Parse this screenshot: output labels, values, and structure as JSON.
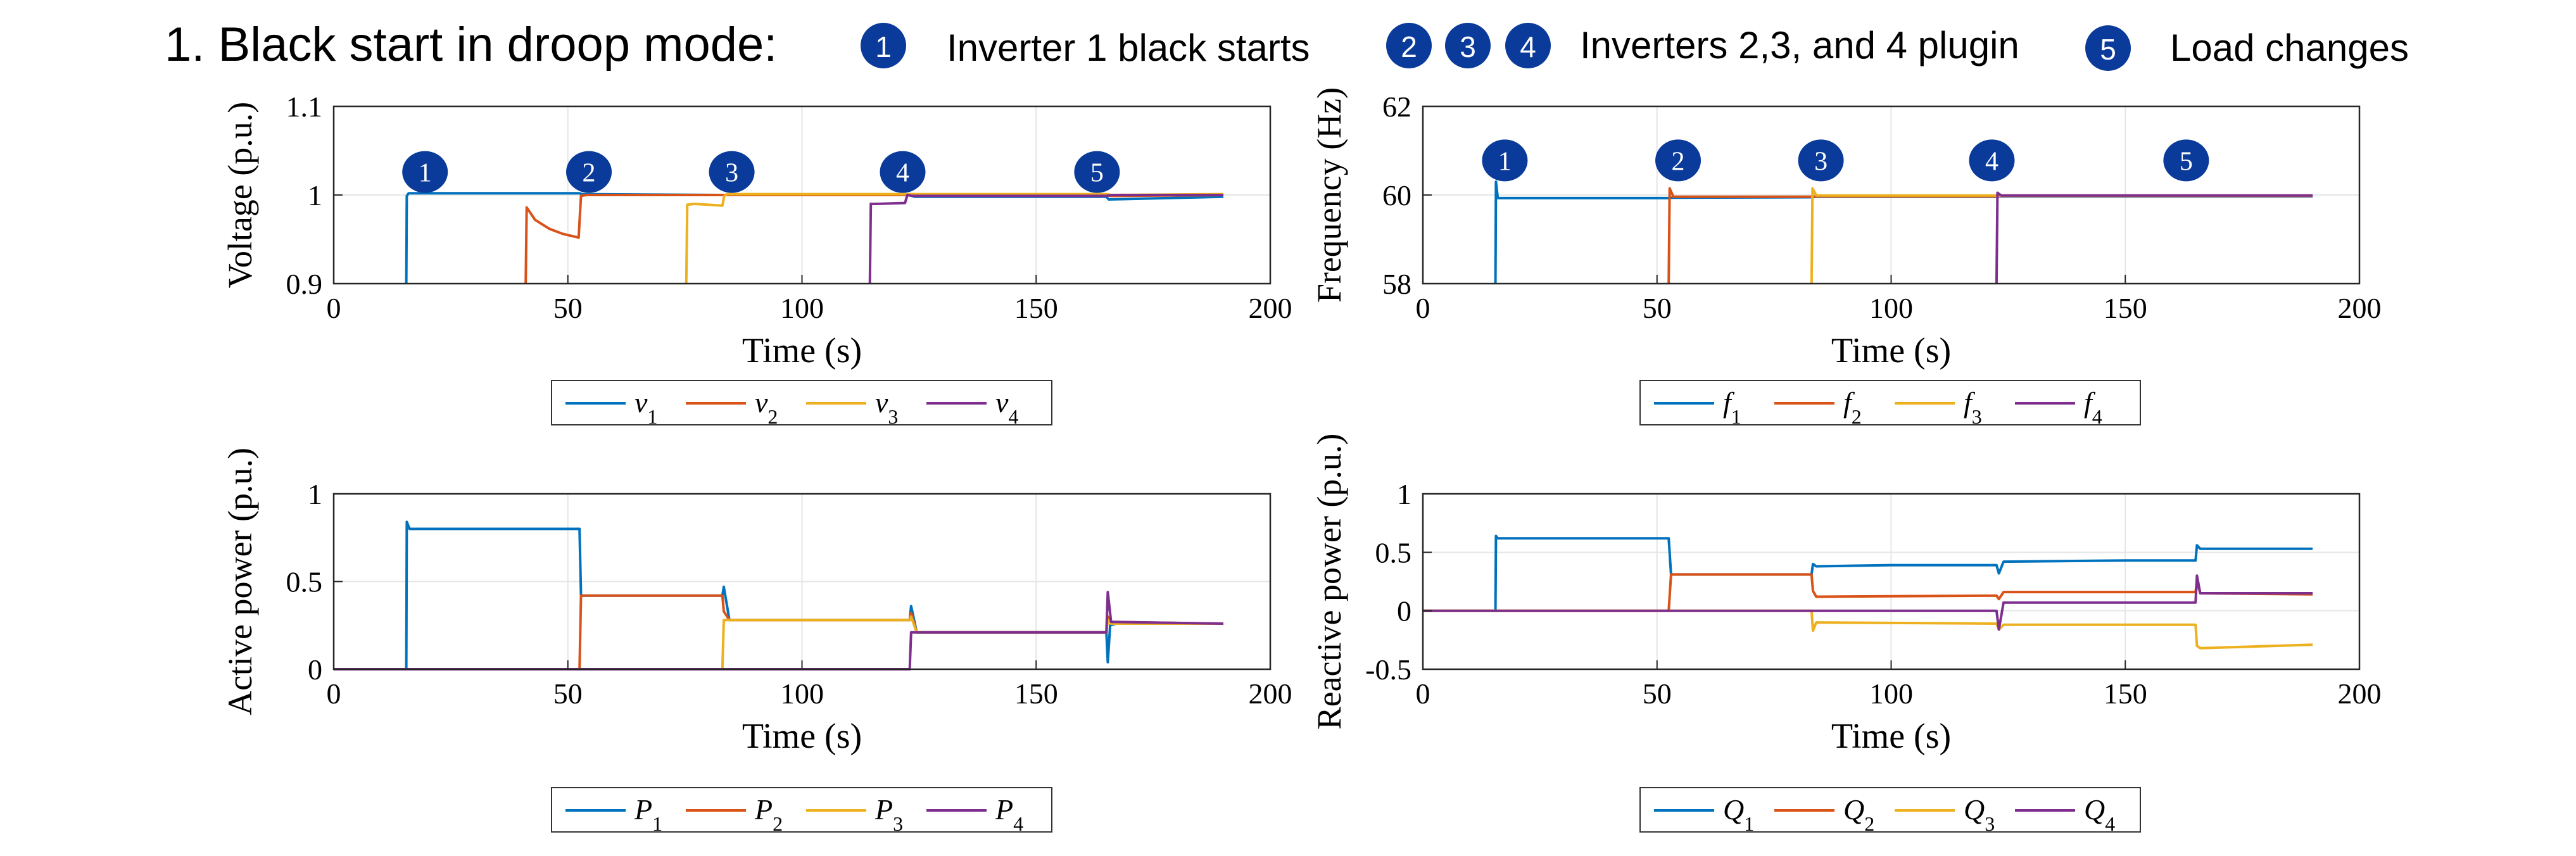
{
  "title": "1. Black start in droop mode:",
  "events": [
    {
      "badges": [
        "1"
      ],
      "text": "Inverter 1 black starts"
    },
    {
      "badges": [
        "2",
        "3",
        "4"
      ],
      "text": "Inverters 2,3, and 4 plugin"
    },
    {
      "badges": [
        "5"
      ],
      "text": "Load changes"
    }
  ],
  "colors": {
    "series": [
      "#0072BD",
      "#D95319",
      "#EDB120",
      "#7E2F8E"
    ],
    "badge": "#0a3a9a",
    "grid": "#e6e6e6",
    "axis": "#262626"
  },
  "chart_data": [
    {
      "id": "voltage",
      "type": "line",
      "title": "",
      "xlabel": "Time (s)",
      "ylabel": "Voltage (p.u.)",
      "xlim": [
        0,
        200
      ],
      "ylim": [
        0.9,
        1.1
      ],
      "xticks": [
        0,
        50,
        100,
        150,
        200
      ],
      "yticks": [
        0.9,
        1,
        1.1
      ],
      "ytick_labels": [
        "0.9",
        "1",
        "1.1"
      ],
      "grid": true,
      "legend_position": "bottom-center",
      "markers": [
        {
          "label": "1",
          "x": 19.5,
          "y": 1.026
        },
        {
          "label": "2",
          "x": 54.5,
          "y": 1.026
        },
        {
          "label": "3",
          "x": 85,
          "y": 1.026
        },
        {
          "label": "4",
          "x": 121.5,
          "y": 1.026
        },
        {
          "label": "5",
          "x": 163,
          "y": 1.026
        }
      ],
      "series": [
        {
          "name": "v",
          "sub": "1",
          "x": [
            15.5,
            15.6,
            16,
            17,
            52.5,
            53,
            83,
            84,
            123,
            124,
            165,
            165.5,
            190
          ],
          "y": [
            0.9,
            0.999,
            1.002,
            1.002,
            1.002,
            1.001,
            1.0,
            1.0,
            1.0,
            0.998,
            0.998,
            0.995,
            0.998
          ]
        },
        {
          "name": "v",
          "sub": "2",
          "x": [
            41,
            41.2,
            43,
            46,
            49,
            52.3,
            52.8,
            54,
            83,
            84,
            123,
            124,
            165,
            166,
            190
          ],
          "y": [
            0.9,
            0.986,
            0.972,
            0.962,
            0.956,
            0.952,
            0.999,
            1.0,
            1.0,
            1.0,
            1.0,
            1.0,
            1.0,
            0.999,
            1.0
          ]
        },
        {
          "name": "v",
          "sub": "3",
          "x": [
            75.3,
            75.5,
            77,
            83,
            83.4,
            84,
            123,
            124,
            165,
            166,
            190
          ],
          "y": [
            0.9,
            0.989,
            0.99,
            0.988,
            0.999,
            1.001,
            1.001,
            1.001,
            1.001,
            1.0,
            1.001
          ]
        },
        {
          "name": "v",
          "sub": "4",
          "x": [
            114.5,
            114.7,
            116,
            122,
            122.5,
            123.5,
            165,
            166,
            190
          ],
          "y": [
            0.9,
            0.99,
            0.99,
            0.991,
            1.0,
            0.999,
            0.999,
            1.0,
            1.0
          ]
        }
      ]
    },
    {
      "id": "frequency",
      "type": "line",
      "title": "",
      "xlabel": "Time (s)",
      "ylabel": "Frequency (Hz)",
      "xlim": [
        0,
        200
      ],
      "ylim": [
        58,
        62
      ],
      "xticks": [
        0,
        50,
        100,
        150,
        200
      ],
      "yticks": [
        58,
        60,
        62
      ],
      "ytick_labels": [
        "58",
        "60",
        "62"
      ],
      "grid": true,
      "legend_position": "bottom-center",
      "markers": [
        {
          "label": "1",
          "x": 17.5,
          "y": 60.78
        },
        {
          "label": "2",
          "x": 54.5,
          "y": 60.78
        },
        {
          "label": "3",
          "x": 85,
          "y": 60.78
        },
        {
          "label": "4",
          "x": 121.5,
          "y": 60.78
        },
        {
          "label": "5",
          "x": 163,
          "y": 60.78
        }
      ],
      "series": [
        {
          "name": "f",
          "sub": "1",
          "x": [
            15.5,
            15.6,
            16,
            17,
            52.5,
            53,
            83,
            84,
            122.5,
            123,
            190
          ],
          "y": [
            58,
            60.3,
            59.93,
            59.93,
            59.93,
            59.94,
            59.95,
            59.96,
            59.96,
            59.97,
            59.97
          ]
        },
        {
          "name": "f",
          "sub": "2",
          "x": [
            52.5,
            52.7,
            53.5,
            83,
            84,
            122.5,
            123,
            190
          ],
          "y": [
            58,
            60.15,
            59.96,
            59.96,
            59.97,
            59.97,
            59.98,
            59.98
          ]
        },
        {
          "name": "f",
          "sub": "3",
          "x": [
            83,
            83.2,
            84,
            122.5,
            123,
            190
          ],
          "y": [
            58,
            60.15,
            59.99,
            59.99,
            59.99,
            59.99
          ]
        },
        {
          "name": "f",
          "sub": "4",
          "x": [
            122.5,
            122.7,
            123.5,
            190
          ],
          "y": [
            58,
            60.05,
            59.99,
            59.99
          ]
        }
      ]
    },
    {
      "id": "active_power",
      "type": "line",
      "title": "",
      "xlabel": "Time (s)",
      "ylabel": "Active power (p.u.)",
      "xlim": [
        0,
        200
      ],
      "ylim": [
        0,
        1
      ],
      "xticks": [
        0,
        50,
        100,
        150,
        200
      ],
      "yticks": [
        0,
        0.5,
        1
      ],
      "ytick_labels": [
        "0",
        "0.5",
        "1"
      ],
      "grid": true,
      "legend_position": "bottom-center",
      "markers": [],
      "series": [
        {
          "name": "P",
          "sub": "1",
          "x": [
            0,
            15.5,
            15.6,
            16.2,
            17,
            52.5,
            52.8,
            54,
            83,
            83.3,
            84.5,
            123,
            123.3,
            124.5,
            165,
            165.3,
            165.8,
            167,
            190
          ],
          "y": [
            0,
            0,
            0.84,
            0.8,
            0.8,
            0.8,
            0.42,
            0.42,
            0.42,
            0.47,
            0.28,
            0.28,
            0.36,
            0.21,
            0.21,
            0.04,
            0.25,
            0.26,
            0.26
          ]
        },
        {
          "name": "P",
          "sub": "2",
          "x": [
            0,
            52.5,
            52.8,
            54,
            83,
            83.3,
            84.5,
            123,
            123.3,
            124.5,
            165,
            165.3,
            166,
            190
          ],
          "y": [
            0,
            0,
            0.42,
            0.42,
            0.42,
            0.33,
            0.28,
            0.28,
            0.32,
            0.21,
            0.21,
            0.3,
            0.27,
            0.26
          ]
        },
        {
          "name": "P",
          "sub": "3",
          "x": [
            0,
            83,
            83.3,
            84.5,
            123,
            123.3,
            124.5,
            165,
            165.3,
            166,
            190
          ],
          "y": [
            0,
            0,
            0.28,
            0.28,
            0.28,
            0.3,
            0.21,
            0.21,
            0.28,
            0.26,
            0.26
          ]
        },
        {
          "name": "P",
          "sub": "4",
          "x": [
            0,
            123,
            123.3,
            124.5,
            165,
            165.3,
            166,
            190
          ],
          "y": [
            0,
            0,
            0.21,
            0.21,
            0.21,
            0.44,
            0.27,
            0.26
          ]
        }
      ]
    },
    {
      "id": "reactive_power",
      "type": "line",
      "title": "",
      "xlabel": "Time (s)",
      "ylabel": "Reactive power (p.u.)",
      "xlim": [
        0,
        200
      ],
      "ylim": [
        -0.5,
        1
      ],
      "xticks": [
        0,
        50,
        100,
        150,
        200
      ],
      "yticks": [
        -0.5,
        0,
        0.5,
        1
      ],
      "ytick_labels": [
        "-0.5",
        "0",
        "0.5",
        "1"
      ],
      "grid": true,
      "legend_position": "bottom-center",
      "markers": [],
      "series": [
        {
          "name": "Q",
          "sub": "1",
          "x": [
            0,
            15.5,
            15.6,
            16,
            52.5,
            53,
            83,
            83.3,
            84,
            100,
            122.5,
            123,
            124,
            150,
            165,
            165.3,
            166,
            190
          ],
          "y": [
            0,
            0,
            0.64,
            0.62,
            0.62,
            0.31,
            0.31,
            0.4,
            0.38,
            0.39,
            0.39,
            0.32,
            0.42,
            0.43,
            0.43,
            0.56,
            0.53,
            0.53
          ]
        },
        {
          "name": "Q",
          "sub": "2",
          "x": [
            0,
            52.5,
            53,
            83,
            83.3,
            84,
            122.5,
            123,
            124,
            165,
            165.3,
            166,
            190
          ],
          "y": [
            0,
            0,
            0.31,
            0.31,
            0.17,
            0.12,
            0.13,
            0.1,
            0.16,
            0.16,
            0.25,
            0.15,
            0.14
          ]
        },
        {
          "name": "Q",
          "sub": "3",
          "x": [
            0,
            83,
            83.3,
            84,
            122.5,
            123,
            124,
            165,
            165.3,
            166,
            190
          ],
          "y": [
            0,
            0,
            -0.17,
            -0.1,
            -0.11,
            -0.16,
            -0.12,
            -0.12,
            -0.3,
            -0.32,
            -0.29
          ]
        },
        {
          "name": "Q",
          "sub": "4",
          "x": [
            0,
            122.5,
            123,
            124,
            165,
            165.3,
            166,
            190
          ],
          "y": [
            0,
            0,
            -0.16,
            0.07,
            0.07,
            0.3,
            0.15,
            0.15
          ]
        }
      ]
    }
  ]
}
